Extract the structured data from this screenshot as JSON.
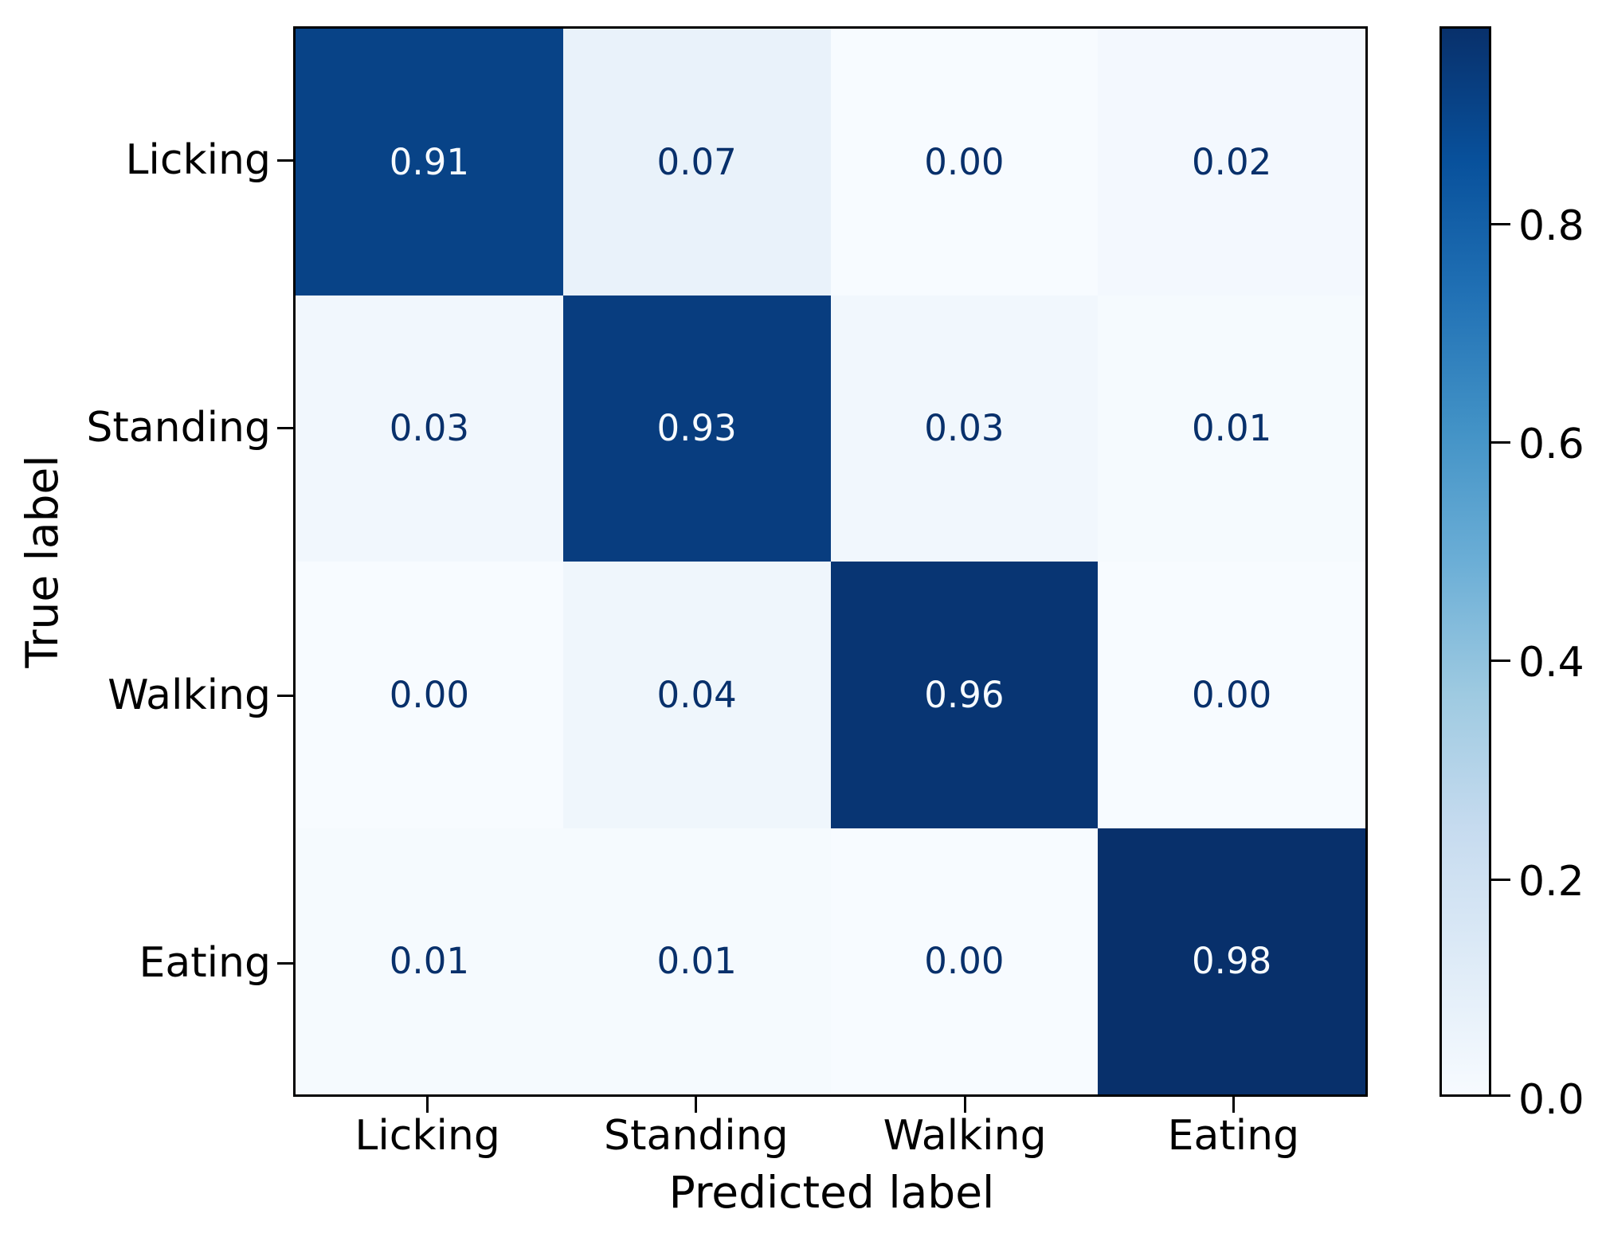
{
  "chart_data": {
    "type": "heatmap",
    "title": "",
    "xlabel": "Predicted label",
    "ylabel": "True label",
    "x_categories": [
      "Licking",
      "Standing",
      "Walking",
      "Eating"
    ],
    "y_categories": [
      "Licking",
      "Standing",
      "Walking",
      "Eating"
    ],
    "matrix": [
      [
        0.91,
        0.07,
        0.0,
        0.02
      ],
      [
        0.03,
        0.93,
        0.03,
        0.01
      ],
      [
        0.0,
        0.04,
        0.96,
        0.0
      ],
      [
        0.01,
        0.01,
        0.0,
        0.98
      ]
    ],
    "value_decimals": 2,
    "vmin": 0.0,
    "vmax": 0.98,
    "colormap": "Blues",
    "colormap_stops": [
      {
        "t": 0.0,
        "hex": "#f7fbff"
      },
      {
        "t": 0.125,
        "hex": "#deebf7"
      },
      {
        "t": 0.25,
        "hex": "#c6dbef"
      },
      {
        "t": 0.375,
        "hex": "#9ecae1"
      },
      {
        "t": 0.5,
        "hex": "#6baed6"
      },
      {
        "t": 0.625,
        "hex": "#4292c6"
      },
      {
        "t": 0.75,
        "hex": "#2171b5"
      },
      {
        "t": 0.875,
        "hex": "#08519c"
      },
      {
        "t": 1.0,
        "hex": "#08306b"
      }
    ],
    "colorbar_ticks": [
      0.0,
      0.2,
      0.4,
      0.6,
      0.8
    ],
    "colorbar_tick_labels": [
      "0.0",
      "0.2",
      "0.4",
      "0.6",
      "0.8"
    ],
    "legend_position": "right-colorbar",
    "grid": false,
    "cell_text_color_dark": "#08306b",
    "cell_text_color_light": "#f7fbff",
    "axis_color": "#000000",
    "background": "#ffffff"
  }
}
